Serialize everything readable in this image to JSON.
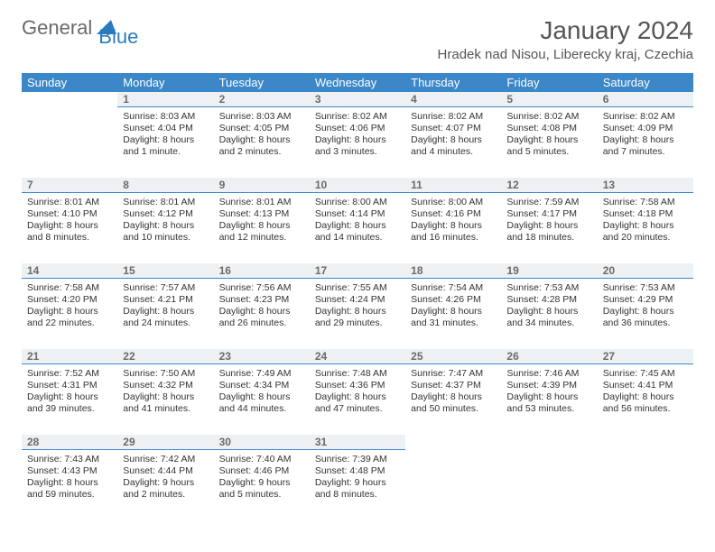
{
  "logo": {
    "part1": "General",
    "part2": "Blue"
  },
  "title": "January 2024",
  "location": "Hradek nad Nisou, Liberecky kraj, Czechia",
  "colors": {
    "header_bg": "#3b87c8",
    "header_text": "#ffffff",
    "daynum_bg": "#eef1f3",
    "daynum_border": "#3b87c8",
    "logo_gray": "#6a6a6a",
    "logo_blue": "#2b7ac0"
  },
  "day_names": [
    "Sunday",
    "Monday",
    "Tuesday",
    "Wednesday",
    "Thursday",
    "Friday",
    "Saturday"
  ],
  "weeks": [
    {
      "nums": [
        "",
        "1",
        "2",
        "3",
        "4",
        "5",
        "6"
      ],
      "cells": [
        null,
        {
          "sr": "Sunrise: 8:03 AM",
          "ss": "Sunset: 4:04 PM",
          "d1": "Daylight: 8 hours",
          "d2": "and 1 minute."
        },
        {
          "sr": "Sunrise: 8:03 AM",
          "ss": "Sunset: 4:05 PM",
          "d1": "Daylight: 8 hours",
          "d2": "and 2 minutes."
        },
        {
          "sr": "Sunrise: 8:02 AM",
          "ss": "Sunset: 4:06 PM",
          "d1": "Daylight: 8 hours",
          "d2": "and 3 minutes."
        },
        {
          "sr": "Sunrise: 8:02 AM",
          "ss": "Sunset: 4:07 PM",
          "d1": "Daylight: 8 hours",
          "d2": "and 4 minutes."
        },
        {
          "sr": "Sunrise: 8:02 AM",
          "ss": "Sunset: 4:08 PM",
          "d1": "Daylight: 8 hours",
          "d2": "and 5 minutes."
        },
        {
          "sr": "Sunrise: 8:02 AM",
          "ss": "Sunset: 4:09 PM",
          "d1": "Daylight: 8 hours",
          "d2": "and 7 minutes."
        }
      ]
    },
    {
      "nums": [
        "7",
        "8",
        "9",
        "10",
        "11",
        "12",
        "13"
      ],
      "cells": [
        {
          "sr": "Sunrise: 8:01 AM",
          "ss": "Sunset: 4:10 PM",
          "d1": "Daylight: 8 hours",
          "d2": "and 8 minutes."
        },
        {
          "sr": "Sunrise: 8:01 AM",
          "ss": "Sunset: 4:12 PM",
          "d1": "Daylight: 8 hours",
          "d2": "and 10 minutes."
        },
        {
          "sr": "Sunrise: 8:01 AM",
          "ss": "Sunset: 4:13 PM",
          "d1": "Daylight: 8 hours",
          "d2": "and 12 minutes."
        },
        {
          "sr": "Sunrise: 8:00 AM",
          "ss": "Sunset: 4:14 PM",
          "d1": "Daylight: 8 hours",
          "d2": "and 14 minutes."
        },
        {
          "sr": "Sunrise: 8:00 AM",
          "ss": "Sunset: 4:16 PM",
          "d1": "Daylight: 8 hours",
          "d2": "and 16 minutes."
        },
        {
          "sr": "Sunrise: 7:59 AM",
          "ss": "Sunset: 4:17 PM",
          "d1": "Daylight: 8 hours",
          "d2": "and 18 minutes."
        },
        {
          "sr": "Sunrise: 7:58 AM",
          "ss": "Sunset: 4:18 PM",
          "d1": "Daylight: 8 hours",
          "d2": "and 20 minutes."
        }
      ]
    },
    {
      "nums": [
        "14",
        "15",
        "16",
        "17",
        "18",
        "19",
        "20"
      ],
      "cells": [
        {
          "sr": "Sunrise: 7:58 AM",
          "ss": "Sunset: 4:20 PM",
          "d1": "Daylight: 8 hours",
          "d2": "and 22 minutes."
        },
        {
          "sr": "Sunrise: 7:57 AM",
          "ss": "Sunset: 4:21 PM",
          "d1": "Daylight: 8 hours",
          "d2": "and 24 minutes."
        },
        {
          "sr": "Sunrise: 7:56 AM",
          "ss": "Sunset: 4:23 PM",
          "d1": "Daylight: 8 hours",
          "d2": "and 26 minutes."
        },
        {
          "sr": "Sunrise: 7:55 AM",
          "ss": "Sunset: 4:24 PM",
          "d1": "Daylight: 8 hours",
          "d2": "and 29 minutes."
        },
        {
          "sr": "Sunrise: 7:54 AM",
          "ss": "Sunset: 4:26 PM",
          "d1": "Daylight: 8 hours",
          "d2": "and 31 minutes."
        },
        {
          "sr": "Sunrise: 7:53 AM",
          "ss": "Sunset: 4:28 PM",
          "d1": "Daylight: 8 hours",
          "d2": "and 34 minutes."
        },
        {
          "sr": "Sunrise: 7:53 AM",
          "ss": "Sunset: 4:29 PM",
          "d1": "Daylight: 8 hours",
          "d2": "and 36 minutes."
        }
      ]
    },
    {
      "nums": [
        "21",
        "22",
        "23",
        "24",
        "25",
        "26",
        "27"
      ],
      "cells": [
        {
          "sr": "Sunrise: 7:52 AM",
          "ss": "Sunset: 4:31 PM",
          "d1": "Daylight: 8 hours",
          "d2": "and 39 minutes."
        },
        {
          "sr": "Sunrise: 7:50 AM",
          "ss": "Sunset: 4:32 PM",
          "d1": "Daylight: 8 hours",
          "d2": "and 41 minutes."
        },
        {
          "sr": "Sunrise: 7:49 AM",
          "ss": "Sunset: 4:34 PM",
          "d1": "Daylight: 8 hours",
          "d2": "and 44 minutes."
        },
        {
          "sr": "Sunrise: 7:48 AM",
          "ss": "Sunset: 4:36 PM",
          "d1": "Daylight: 8 hours",
          "d2": "and 47 minutes."
        },
        {
          "sr": "Sunrise: 7:47 AM",
          "ss": "Sunset: 4:37 PM",
          "d1": "Daylight: 8 hours",
          "d2": "and 50 minutes."
        },
        {
          "sr": "Sunrise: 7:46 AM",
          "ss": "Sunset: 4:39 PM",
          "d1": "Daylight: 8 hours",
          "d2": "and 53 minutes."
        },
        {
          "sr": "Sunrise: 7:45 AM",
          "ss": "Sunset: 4:41 PM",
          "d1": "Daylight: 8 hours",
          "d2": "and 56 minutes."
        }
      ]
    },
    {
      "nums": [
        "28",
        "29",
        "30",
        "31",
        "",
        "",
        ""
      ],
      "cells": [
        {
          "sr": "Sunrise: 7:43 AM",
          "ss": "Sunset: 4:43 PM",
          "d1": "Daylight: 8 hours",
          "d2": "and 59 minutes."
        },
        {
          "sr": "Sunrise: 7:42 AM",
          "ss": "Sunset: 4:44 PM",
          "d1": "Daylight: 9 hours",
          "d2": "and 2 minutes."
        },
        {
          "sr": "Sunrise: 7:40 AM",
          "ss": "Sunset: 4:46 PM",
          "d1": "Daylight: 9 hours",
          "d2": "and 5 minutes."
        },
        {
          "sr": "Sunrise: 7:39 AM",
          "ss": "Sunset: 4:48 PM",
          "d1": "Daylight: 9 hours",
          "d2": "and 8 minutes."
        },
        null,
        null,
        null
      ]
    }
  ]
}
